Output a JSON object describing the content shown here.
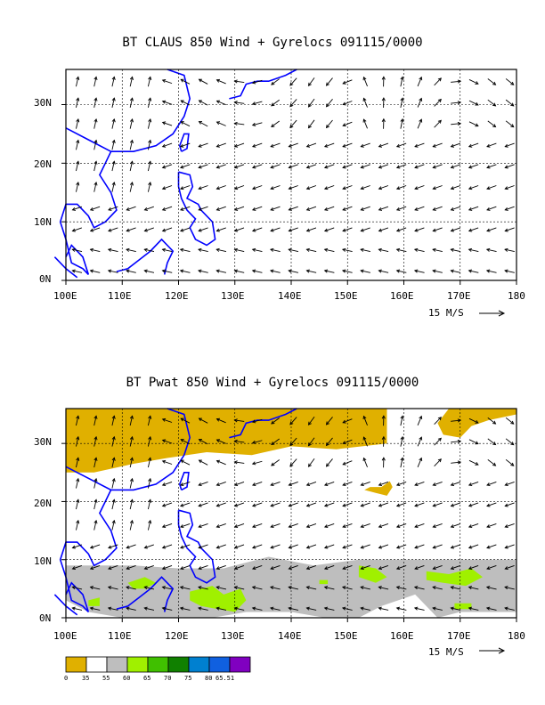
{
  "chart_data": [
    {
      "type": "vector-field",
      "title": "BT CLAUS 850 Wind + Gyrelocs 091115/0000",
      "xticks": [
        "100E",
        "110E",
        "120E",
        "130E",
        "140E",
        "150E",
        "160E",
        "170E",
        "180"
      ],
      "yticks": [
        "0N",
        "10N",
        "20N",
        "30N"
      ],
      "xlim": [
        100,
        180
      ],
      "ylim": [
        0,
        36
      ],
      "grid": "dashed",
      "reference_vector": "15 M/S",
      "colors": {
        "coast": "#0000ff",
        "arrows": "#000000"
      }
    },
    {
      "type": "vector-field-over-filled-contour",
      "title": "BT Pwat 850 Wind + Gyrelocs 091115/0000",
      "xticks": [
        "100E",
        "110E",
        "120E",
        "130E",
        "140E",
        "150E",
        "160E",
        "170E",
        "180"
      ],
      "yticks": [
        "0N",
        "10N",
        "20N",
        "30N"
      ],
      "xlim": [
        100,
        180
      ],
      "ylim": [
        0,
        36
      ],
      "grid": "dashed",
      "reference_vector": "15 M/S",
      "colors": {
        "coast": "#0000ff",
        "arrows": "#000000"
      },
      "legend": {
        "labels": [
          "0",
          "35",
          "55",
          "60",
          "65",
          "70",
          "75",
          "80",
          "65.51"
        ],
        "colors": [
          "#e0b000",
          "#ffffff",
          "#bebebe",
          "#a0f000",
          "#40c000",
          "#108000",
          "#0080d0",
          "#1060e0",
          "#8000c0"
        ]
      }
    }
  ]
}
